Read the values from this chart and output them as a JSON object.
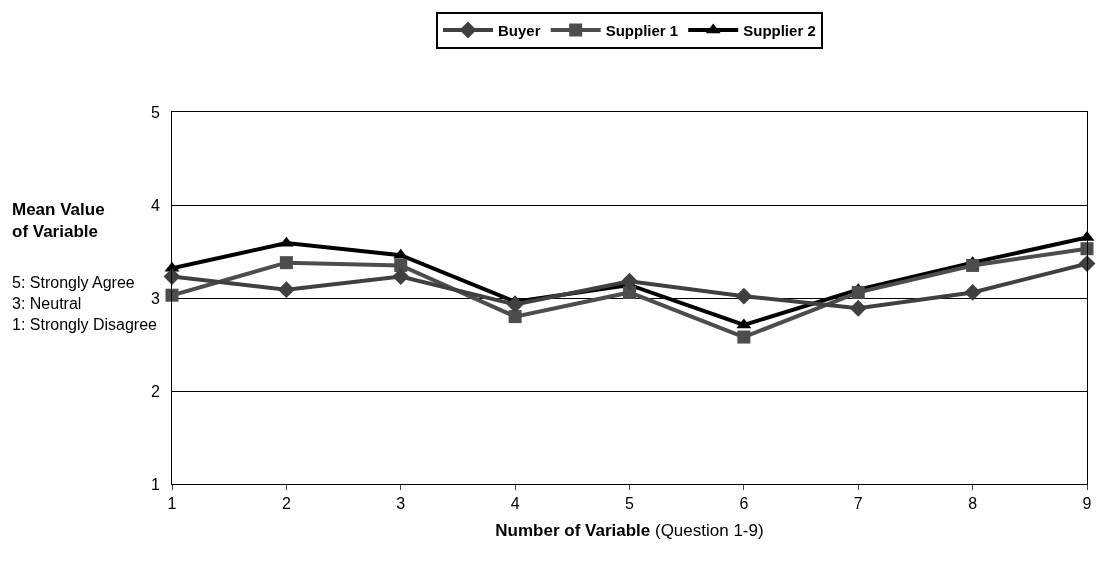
{
  "chart_data": {
    "type": "line",
    "xlabel": "Number of Variable (Question 1-9)",
    "ylabel": "Mean Value\nof Variable",
    "annotations": [
      "5: Strongly Agree\n3: Neutral\n1: Strongly Disagree"
    ],
    "x": [
      1,
      2,
      3,
      4,
      5,
      6,
      7,
      8,
      9
    ],
    "xlim": [
      1,
      9
    ],
    "xticks": [
      1,
      2,
      3,
      4,
      5,
      6,
      7,
      8,
      9
    ],
    "ylim": [
      1,
      5
    ],
    "yticks": [
      1,
      2,
      3,
      4,
      5
    ],
    "grid": "y",
    "legend": "top",
    "line_style": "solid",
    "series": [
      {
        "name": "Buyer",
        "color": "#404040",
        "marker": "diamond",
        "values": [
          3.23,
          3.09,
          3.23,
          2.93,
          3.18,
          3.02,
          2.89,
          3.06,
          3.37
        ]
      },
      {
        "name": "Supplier 1",
        "color": "#4d4d4d",
        "marker": "square",
        "values": [
          3.03,
          3.38,
          3.35,
          2.8,
          3.06,
          2.58,
          3.06,
          3.35,
          3.53
        ]
      },
      {
        "name": "Supplier 2",
        "color": "#000000",
        "marker": "triangle",
        "values": [
          3.32,
          3.59,
          3.46,
          2.96,
          3.14,
          2.71,
          3.09,
          3.38,
          3.65
        ]
      }
    ]
  }
}
